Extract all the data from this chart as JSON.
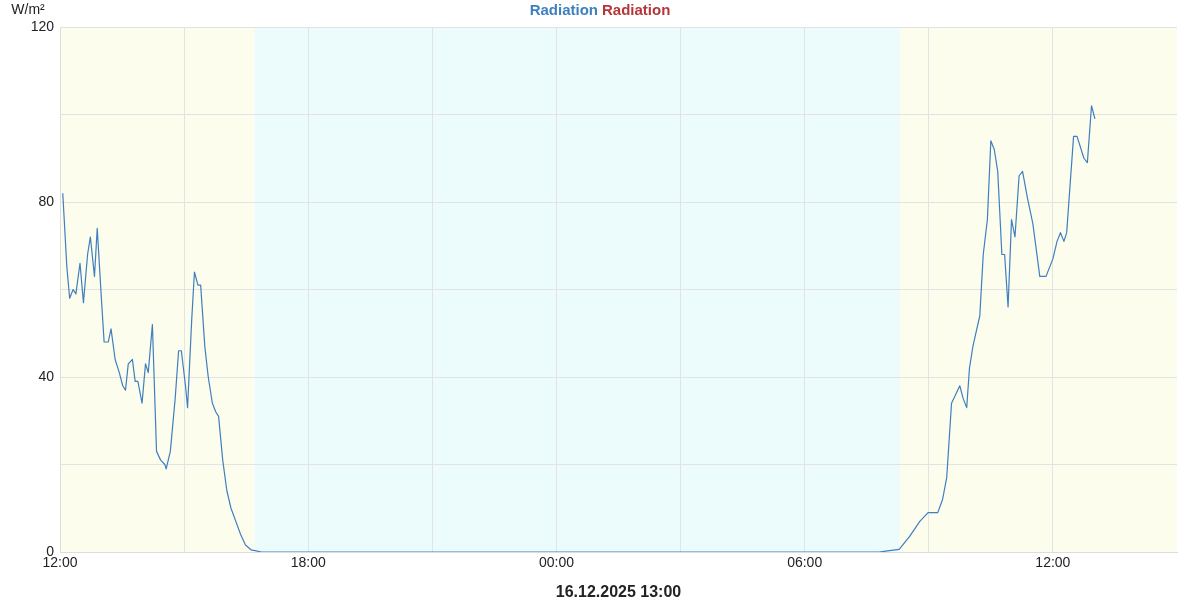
{
  "chart_data": {
    "type": "line",
    "xlabel": "16.12.2025 13:00",
    "ylabel": "W/m²",
    "legend": "top",
    "grid": true,
    "marker": "none",
    "line_style": "solid",
    "xlim": [
      "2025-12-15T12:00",
      "2025-12-16T15:00"
    ],
    "xticks": [
      {
        "value": "2025-12-15T12:00",
        "label": "12:00"
      },
      {
        "value": "2025-12-15T15:00",
        "label": null
      },
      {
        "value": "2025-12-15T18:00",
        "label": "18:00"
      },
      {
        "value": "2025-12-15T21:00",
        "label": null
      },
      {
        "value": "2025-12-16T00:00",
        "label": "00:00"
      },
      {
        "value": "2025-12-16T03:00",
        "label": null
      },
      {
        "value": "2025-12-16T06:00",
        "label": "06:00"
      },
      {
        "value": "2025-12-16T09:00",
        "label": null
      },
      {
        "value": "2025-12-16T12:00",
        "label": "12:00"
      }
    ],
    "ylim": [
      0,
      120
    ],
    "yticks": [
      0,
      {
        "value": 20,
        "label": null
      },
      40,
      {
        "value": 60,
        "label": null
      },
      80,
      {
        "value": 100,
        "label": null
      },
      120
    ],
    "bands": [
      {
        "axis": "x",
        "from": "2025-12-15T12:00",
        "to": "2025-12-15T16:42",
        "color": "#fdfdee"
      },
      {
        "axis": "x",
        "from": "2025-12-15T16:42",
        "to": "2025-12-16T08:18",
        "color": "#ecfbfb"
      },
      {
        "axis": "x",
        "from": "2025-12-16T08:18",
        "to": "2025-12-16T15:00",
        "color": "#fdfdee"
      }
    ],
    "series": [
      {
        "name": "Radiation",
        "color": "#3f7fbf",
        "x": [
          "2025-12-15T12:04",
          "2025-12-15T12:10",
          "2025-12-15T12:14",
          "2025-12-15T12:19",
          "2025-12-15T12:23",
          "2025-12-15T12:29",
          "2025-12-15T12:34",
          "2025-12-15T12:40",
          "2025-12-15T12:44",
          "2025-12-15T12:50",
          "2025-12-15T12:54",
          "2025-12-15T13:00",
          "2025-12-15T13:04",
          "2025-12-15T13:10",
          "2025-12-15T13:14",
          "2025-12-15T13:20",
          "2025-12-15T13:26",
          "2025-12-15T13:31",
          "2025-12-15T13:35",
          "2025-12-15T13:39",
          "2025-12-15T13:45",
          "2025-12-15T13:49",
          "2025-12-15T13:53",
          "2025-12-15T13:59",
          "2025-12-15T14:04",
          "2025-12-15T14:08",
          "2025-12-15T14:14",
          "2025-12-15T14:20",
          "2025-12-15T14:26",
          "2025-12-15T14:32",
          "2025-12-15T14:34",
          "2025-12-15T14:40",
          "2025-12-15T14:47",
          "2025-12-15T14:52",
          "2025-12-15T14:56",
          "2025-12-15T15:02",
          "2025-12-15T15:05",
          "2025-12-15T15:11",
          "2025-12-15T15:15",
          "2025-12-15T15:20",
          "2025-12-15T15:24",
          "2025-12-15T15:30",
          "2025-12-15T15:35",
          "2025-12-15T15:41",
          "2025-12-15T15:46",
          "2025-12-15T15:50",
          "2025-12-15T15:56",
          "2025-12-15T16:02",
          "2025-12-15T16:08",
          "2025-12-15T16:15",
          "2025-12-15T16:22",
          "2025-12-15T16:29",
          "2025-12-15T16:37",
          "2025-12-15T16:52",
          "2025-12-16T07:48",
          "2025-12-16T08:03",
          "2025-12-16T08:17",
          "2025-12-16T08:32",
          "2025-12-16T08:47",
          "2025-12-16T08:59",
          "2025-12-16T09:13",
          "2025-12-16T09:20",
          "2025-12-16T09:26",
          "2025-12-16T09:33",
          "2025-12-16T09:39",
          "2025-12-16T09:45",
          "2025-12-16T09:50",
          "2025-12-16T09:55",
          "2025-12-16T09:59",
          "2025-12-16T10:04",
          "2025-12-16T10:14",
          "2025-12-16T10:19",
          "2025-12-16T10:25",
          "2025-12-16T10:30",
          "2025-12-16T10:35",
          "2025-12-16T10:40",
          "2025-12-16T10:46",
          "2025-12-16T10:50",
          "2025-12-16T10:55",
          "2025-12-16T11:00",
          "2025-12-16T11:05",
          "2025-12-16T11:11",
          "2025-12-16T11:16",
          "2025-12-16T11:23",
          "2025-12-16T11:31",
          "2025-12-16T11:41",
          "2025-12-16T11:46",
          "2025-12-16T11:50",
          "2025-12-16T12:00",
          "2025-12-16T12:06",
          "2025-12-16T12:11",
          "2025-12-16T12:16",
          "2025-12-16T12:20",
          "2025-12-16T12:30",
          "2025-12-16T12:35",
          "2025-12-16T12:45",
          "2025-12-16T12:50",
          "2025-12-16T12:56",
          "2025-12-16T13:01"
        ],
        "values": [
          82,
          65,
          58,
          60,
          59,
          66,
          57,
          68,
          72,
          63,
          74,
          58,
          48,
          48,
          51,
          44,
          41,
          38,
          37,
          43,
          44,
          39,
          39,
          34,
          43,
          41,
          52,
          23,
          21,
          20,
          19,
          23,
          35,
          46,
          46,
          38,
          33,
          53,
          64,
          61,
          61,
          47,
          40,
          34,
          32,
          31,
          21,
          14,
          10,
          7,
          4,
          1.6,
          0.5,
          0,
          0,
          0.3,
          0.6,
          3.5,
          7,
          9,
          9,
          12,
          17,
          34,
          36,
          38,
          35,
          33,
          42,
          47,
          54,
          68,
          76,
          94,
          92,
          87,
          68,
          68,
          56,
          76,
          72,
          86,
          87,
          81,
          75,
          63,
          63,
          63,
          67,
          71,
          73,
          71,
          73,
          95,
          95,
          90,
          89,
          102,
          99
        ]
      },
      {
        "name": "Radiation",
        "color": "#b5363a"
      }
    ]
  }
}
